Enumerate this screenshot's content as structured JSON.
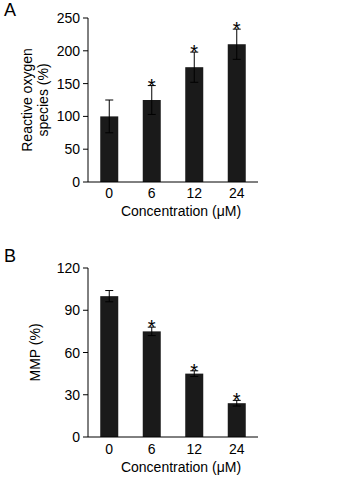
{
  "chart_data": [
    {
      "type": "bar",
      "title": "A",
      "categories": [
        "0",
        "6",
        "12",
        "24"
      ],
      "values": [
        100,
        125,
        175,
        210
      ],
      "errors": [
        25,
        22,
        23,
        23
      ],
      "annotations": [
        null,
        "*",
        "*",
        "*"
      ],
      "x_label": "Concentration (μM)",
      "y_label": "Reactive oxygen species (%)",
      "ylim": [
        0,
        250
      ],
      "yticks": [
        0,
        50,
        100,
        150,
        200,
        250
      ],
      "color": "#1a1a1a",
      "grid": false
    },
    {
      "type": "bar",
      "title": "B",
      "categories": [
        "0",
        "6",
        "12",
        "24"
      ],
      "values": [
        100,
        75,
        45,
        24
      ],
      "errors": [
        4,
        3,
        2,
        2
      ],
      "annotations": [
        null,
        "*",
        "*",
        "*"
      ],
      "x_label": "Concentration (μM)",
      "y_label": "MMP (%)",
      "ylim": [
        0,
        120
      ],
      "yticks": [
        0,
        30,
        60,
        90,
        120
      ],
      "color": "#1a1a1a",
      "grid": false
    }
  ]
}
